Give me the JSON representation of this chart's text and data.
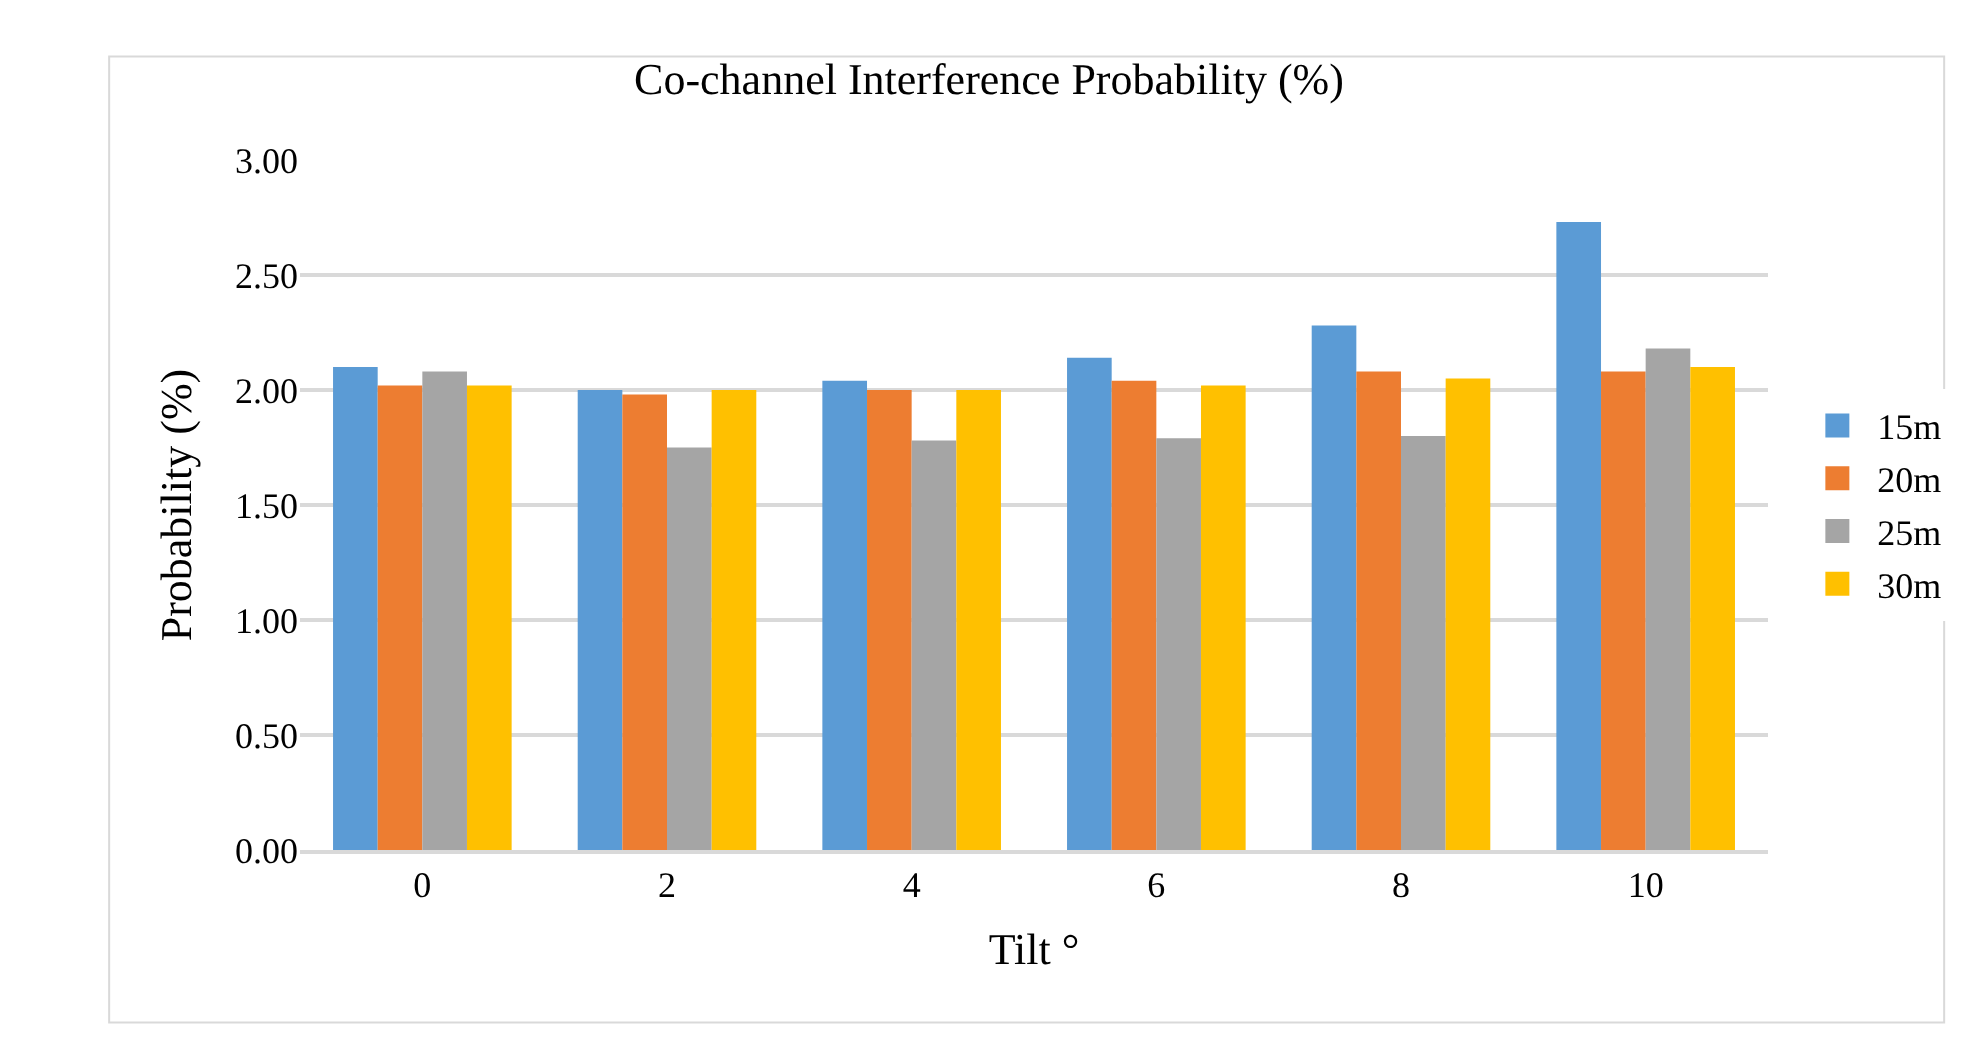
{
  "chart_data": {
    "type": "bar",
    "title": "Co-channel Interference Probability (%)",
    "xlabel": "Tilt °",
    "ylabel": "Probability (%)",
    "categories": [
      "0",
      "2",
      "4",
      "6",
      "8",
      "10"
    ],
    "series": [
      {
        "name": "15m",
        "color": "#5b9bd5",
        "values": [
          2.1,
          2.0,
          2.04,
          2.14,
          2.28,
          2.73
        ]
      },
      {
        "name": "20m",
        "color": "#ed7d31",
        "values": [
          2.02,
          1.98,
          2.0,
          2.04,
          2.08,
          2.08
        ]
      },
      {
        "name": "25m",
        "color": "#a5a5a5",
        "values": [
          2.08,
          1.75,
          1.78,
          1.79,
          1.8,
          2.18
        ]
      },
      {
        "name": "30m",
        "color": "#ffc000",
        "values": [
          2.02,
          2.0,
          2.0,
          2.02,
          2.05,
          2.1
        ]
      }
    ],
    "ylim": [
      0,
      3
    ],
    "yticks": [
      {
        "value": 0,
        "label": "0.00"
      },
      {
        "value": 0.5,
        "label": "0.50"
      },
      {
        "value": 1,
        "label": "1.00"
      },
      {
        "value": 1.5,
        "label": "1.50"
      },
      {
        "value": 2,
        "label": "2.00"
      },
      {
        "value": 2.5,
        "label": "2.50"
      },
      {
        "value": 3,
        "label": "3.00"
      }
    ],
    "grid": "y",
    "legend": "right"
  }
}
